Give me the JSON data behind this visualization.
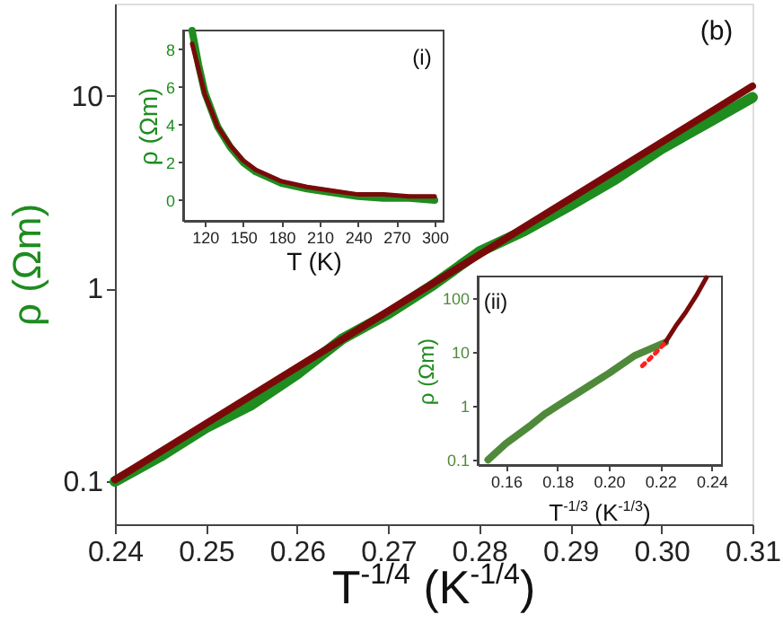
{
  "chart_data": [
    {
      "type": "line",
      "xlabel": "T$^{-1/4}$ (K$^{-1/4}$)",
      "ylabel": "ρ (Ωm)",
      "log": "y",
      "xlim": [
        0.24,
        0.31
      ],
      "xticks": [
        0.24,
        0.25,
        0.26,
        0.27,
        0.28,
        0.29,
        {
          "value": 0.3,
          "label": "0.30"
        },
        0.31
      ],
      "ylim": [
        0.06,
        30
      ],
      "yticks": [
        0.1,
        1,
        10
      ],
      "annotations": [
        "(b)"
      ],
      "series": [
        {
          "color": "#1e8c1e",
          "x": [
            0.24,
            0.245,
            0.25,
            0.255,
            0.26,
            0.265,
            0.27,
            0.275,
            0.28,
            0.285,
            0.29,
            0.295,
            0.3,
            0.305,
            0.31
          ],
          "values": [
            0.1,
            0.135,
            0.19,
            0.25,
            0.36,
            0.55,
            0.74,
            1.05,
            1.55,
            2.0,
            2.7,
            3.7,
            5.3,
            7.2,
            9.8
          ]
        },
        {
          "color": "#7a0a0a",
          "x": [
            0.24,
            0.31
          ],
          "values": [
            0.102,
            11.2
          ]
        }
      ]
    },
    {
      "type": "line",
      "title": "(i)",
      "xlabel": "T (K)",
      "ylabel": "ρ (Ωm)",
      "xlim": [
        103,
        307
      ],
      "xticks": [
        120,
        150,
        180,
        210,
        240,
        270,
        300
      ],
      "ylim": [
        -1.1,
        9
      ],
      "yticks": [
        0,
        2,
        4,
        6,
        8
      ],
      "series": [
        {
          "color": "#1e8c1e",
          "x": [
            110,
            115,
            120,
            130,
            140,
            150,
            160,
            180,
            200,
            220,
            240,
            260,
            280,
            300
          ],
          "values": [
            9.0,
            7.2,
            5.7,
            3.9,
            2.8,
            2.0,
            1.5,
            0.9,
            0.6,
            0.4,
            0.2,
            0.1,
            0.1,
            0.0
          ]
        },
        {
          "color": "#7a0a0a",
          "x": [
            110,
            120,
            130,
            140,
            150,
            160,
            180,
            200,
            220,
            240,
            260,
            280,
            300
          ],
          "values": [
            8.3,
            5.6,
            3.9,
            2.9,
            2.1,
            1.6,
            1.0,
            0.7,
            0.5,
            0.3,
            0.3,
            0.2,
            0.2
          ]
        }
      ]
    },
    {
      "type": "line",
      "title": "(ii)",
      "xlabel": "T$^{-1/3}$ (K$^{-1/3}$)",
      "ylabel": "ρ (Ωm)",
      "log": "y",
      "xlim": [
        0.149,
        0.244
      ],
      "xticks": [
        0.16,
        0.18,
        {
          "value": 0.2,
          "label": "0.20"
        },
        0.22,
        0.24
      ],
      "ylim": [
        0.08,
        250
      ],
      "yticks": [
        0.1,
        1,
        10,
        100
      ],
      "series": [
        {
          "color": "#4e8a3a",
          "x": [
            0.153,
            0.16,
            0.17,
            0.175,
            0.18,
            0.19,
            0.2,
            0.21,
            0.222
          ],
          "values": [
            0.1,
            0.2,
            0.45,
            0.7,
            1.0,
            2.0,
            4.0,
            8.5,
            15
          ]
        },
        {
          "color": "#7a0a0a",
          "x": [
            0.222,
            0.226,
            0.23,
            0.234,
            0.238
          ],
          "values": [
            15,
            30,
            55,
            110,
            240
          ]
        },
        {
          "color": "#ff2020",
          "line_style": "dotted",
          "x": [
            0.213,
            0.216,
            0.219,
            0.222
          ],
          "values": [
            5.5,
            7.5,
            10.5,
            15
          ]
        }
      ]
    }
  ]
}
